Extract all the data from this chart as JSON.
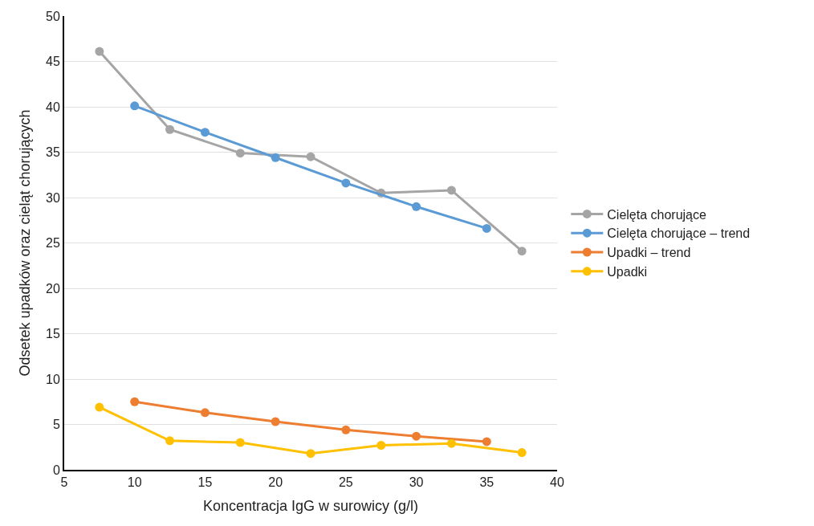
{
  "chart_data": {
    "type": "line",
    "xlabel": "Koncentracja IgG w surowicy (g/l)",
    "ylabel": "Odsetek upadków oraz cieląt chorujących",
    "xlim": [
      5,
      40
    ],
    "xticks": [
      5,
      10,
      15,
      20,
      25,
      30,
      35,
      40
    ],
    "ylim": [
      0,
      50
    ],
    "yticks": [
      0,
      5,
      10,
      15,
      20,
      25,
      30,
      35,
      40,
      45,
      50
    ],
    "grid": "y",
    "legend": "right",
    "marker": "circle",
    "line_style": "solid",
    "series": [
      {
        "name": "Cielęta chorujące",
        "color": "#a5a5a5",
        "x": [
          7.5,
          12.5,
          17.5,
          22.5,
          27.5,
          32.5,
          37.5
        ],
        "values": [
          46.1,
          37.5,
          34.9,
          34.5,
          30.5,
          30.8,
          24.1
        ]
      },
      {
        "name": "Cielęta chorujące – trend",
        "color": "#5b9bd5",
        "x": [
          10,
          15,
          20,
          25,
          30,
          35
        ],
        "values": [
          40.1,
          37.2,
          34.4,
          31.6,
          29.0,
          26.6
        ]
      },
      {
        "name": "Upadki – trend",
        "color": "#ed7d31",
        "x": [
          10,
          15,
          20,
          25,
          30,
          35
        ],
        "values": [
          7.5,
          6.3,
          5.3,
          4.4,
          3.7,
          3.1
        ]
      },
      {
        "name": "Upadki",
        "color": "#ffc000",
        "x": [
          7.5,
          12.5,
          17.5,
          22.5,
          27.5,
          32.5,
          37.5
        ],
        "values": [
          6.9,
          3.2,
          3.0,
          1.8,
          2.7,
          2.9,
          1.9
        ]
      }
    ]
  }
}
